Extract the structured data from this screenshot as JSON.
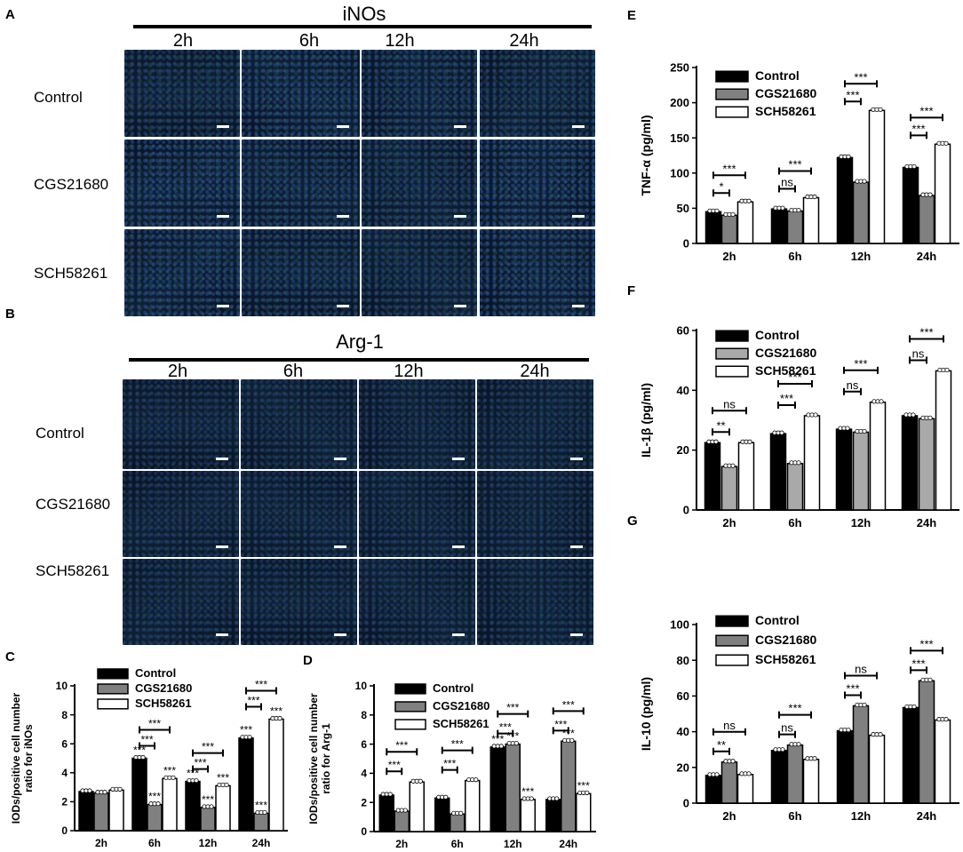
{
  "panelA": {
    "letter": "A",
    "title": "iNOs",
    "times": [
      "2h",
      "6h",
      "12h",
      "24h"
    ],
    "rows": [
      "Control",
      "CGS21680",
      "SCH58261"
    ]
  },
  "panelB": {
    "letter": "B",
    "title": "Arg-1",
    "times": [
      "2h",
      "6h",
      "12h",
      "24h"
    ],
    "rows": [
      "Control",
      "CGS21680",
      "SCH58261"
    ]
  },
  "colors": {
    "control": "#000000",
    "cgs_dark": "#808080",
    "cgs_light": "#a9a9a9",
    "sch": "#ffffff",
    "micro_nuclei": "#1e3c8c",
    "micro_green": "#3ca050"
  },
  "chart_data": [
    {
      "id": "C",
      "letter": "C",
      "type": "bar",
      "ylabel": "IODs/positive cell number ratio for iNOs",
      "categories": [
        "2h",
        "6h",
        "12h",
        "24h"
      ],
      "ylim": [
        0,
        10
      ],
      "yticks": [
        0,
        2,
        4,
        6,
        8,
        10
      ],
      "series": [
        {
          "name": "Control",
          "values": [
            2.7,
            5.0,
            3.4,
            6.4
          ],
          "color": "#000000"
        },
        {
          "name": "CGS21680",
          "values": [
            2.6,
            1.8,
            1.6,
            1.2
          ],
          "color": "#808080"
        },
        {
          "name": "SCH58261",
          "values": [
            2.8,
            3.6,
            3.1,
            7.7
          ],
          "color": "#ffffff"
        }
      ],
      "bar_labels": [
        [
          "",
          "***",
          "***",
          "***"
        ],
        [
          "",
          "***",
          "***",
          "***"
        ],
        [
          "",
          "***",
          "***",
          "***"
        ]
      ],
      "brackets": [
        [
          "",
          "***",
          "***",
          "***"
        ],
        [
          "",
          "***",
          "***",
          "***"
        ]
      ],
      "legend": "top-left"
    },
    {
      "id": "D",
      "letter": "D",
      "type": "bar",
      "ylabel": "IODs/positive cell number ratio for Arg-1",
      "categories": [
        "2h",
        "6h",
        "12h",
        "24h"
      ],
      "ylim": [
        0,
        10
      ],
      "yticks": [
        0,
        2,
        4,
        6,
        8,
        10
      ],
      "series": [
        {
          "name": "Control",
          "values": [
            2.5,
            2.3,
            5.8,
            2.2
          ],
          "color": "#000000"
        },
        {
          "name": "CGS21680",
          "values": [
            1.4,
            1.2,
            6.0,
            6.2
          ],
          "color": "#808080"
        },
        {
          "name": "SCH58261",
          "values": [
            3.4,
            3.5,
            2.2,
            2.6
          ],
          "color": "#ffffff"
        }
      ],
      "bar_labels": [
        [
          "",
          "",
          "***",
          ""
        ],
        [
          "",
          "",
          "***",
          "***"
        ],
        [
          "",
          "",
          "***",
          "***"
        ]
      ],
      "brackets": [
        [
          "***",
          "***",
          "***",
          "***"
        ],
        [
          "***",
          "***",
          "***",
          "***"
        ]
      ],
      "legend": "top-left"
    },
    {
      "id": "E",
      "letter": "E",
      "type": "bar",
      "ylabel": "TNF-α (pg/ml)",
      "categories": [
        "2h",
        "6h",
        "12h",
        "24h"
      ],
      "ylim": [
        0,
        250
      ],
      "yticks": [
        0,
        50,
        100,
        150,
        200,
        250
      ],
      "series": [
        {
          "name": "Control",
          "values": [
            45,
            49,
            122,
            108
          ],
          "color": "#000000"
        },
        {
          "name": "CGS21680",
          "values": [
            40,
            46,
            87,
            68
          ],
          "color": "#808080"
        },
        {
          "name": "SCH58261",
          "values": [
            59,
            65,
            189,
            141
          ],
          "color": "#ffffff"
        }
      ],
      "bar_labels": [
        [
          "",
          "",
          "",
          ""
        ],
        [
          "",
          "",
          "",
          ""
        ],
        [
          "",
          "",
          "",
          ""
        ]
      ],
      "brackets": [
        [
          "*",
          "ns",
          "***",
          "***"
        ],
        [
          "***",
          "***",
          "***",
          "***"
        ]
      ],
      "legend": "top-left"
    },
    {
      "id": "F",
      "letter": "F",
      "type": "bar",
      "ylabel": "IL-1β (pg/ml)",
      "categories": [
        "2h",
        "6h",
        "12h",
        "24h"
      ],
      "ylim": [
        0,
        60
      ],
      "yticks": [
        0,
        20,
        40,
        60
      ],
      "series": [
        {
          "name": "Control",
          "values": [
            22.5,
            25.5,
            27,
            31.5
          ],
          "color": "#000000"
        },
        {
          "name": "CGS21680",
          "values": [
            14.5,
            15.5,
            26,
            30.5
          ],
          "color": "#a9a9a9"
        },
        {
          "name": "SCH58261",
          "values": [
            22.5,
            31.5,
            36,
            46.5
          ],
          "color": "#ffffff"
        }
      ],
      "bar_labels": [
        [
          "",
          "",
          "",
          ""
        ],
        [
          "",
          "",
          "",
          ""
        ],
        [
          "",
          "",
          "",
          ""
        ]
      ],
      "brackets": [
        [
          "**",
          "***",
          "ns",
          "ns"
        ],
        [
          "ns",
          "***",
          "***",
          "***"
        ]
      ],
      "legend": "top-left"
    },
    {
      "id": "G",
      "letter": "G",
      "type": "bar",
      "ylabel": "IL-10 (pg/ml)",
      "categories": [
        "2h",
        "6h",
        "12h",
        "24h"
      ],
      "ylim": [
        0,
        100
      ],
      "yticks": [
        0,
        20,
        40,
        60,
        80,
        100
      ],
      "series": [
        {
          "name": "Control",
          "values": [
            15.5,
            29.5,
            40.5,
            53.5
          ],
          "color": "#000000"
        },
        {
          "name": "CGS21680",
          "values": [
            23,
            32.5,
            54.5,
            68.5
          ],
          "color": "#808080"
        },
        {
          "name": "SCH58261",
          "values": [
            16,
            24.5,
            38,
            46.5
          ],
          "color": "#ffffff"
        }
      ],
      "bar_labels": [
        [
          "",
          "",
          "",
          ""
        ],
        [
          "",
          "",
          "",
          ""
        ],
        [
          "",
          "",
          "",
          ""
        ]
      ],
      "brackets": [
        [
          "**",
          "ns",
          "***",
          "***"
        ],
        [
          "ns",
          "***",
          "ns",
          "***"
        ]
      ],
      "legend": "top-left"
    }
  ]
}
